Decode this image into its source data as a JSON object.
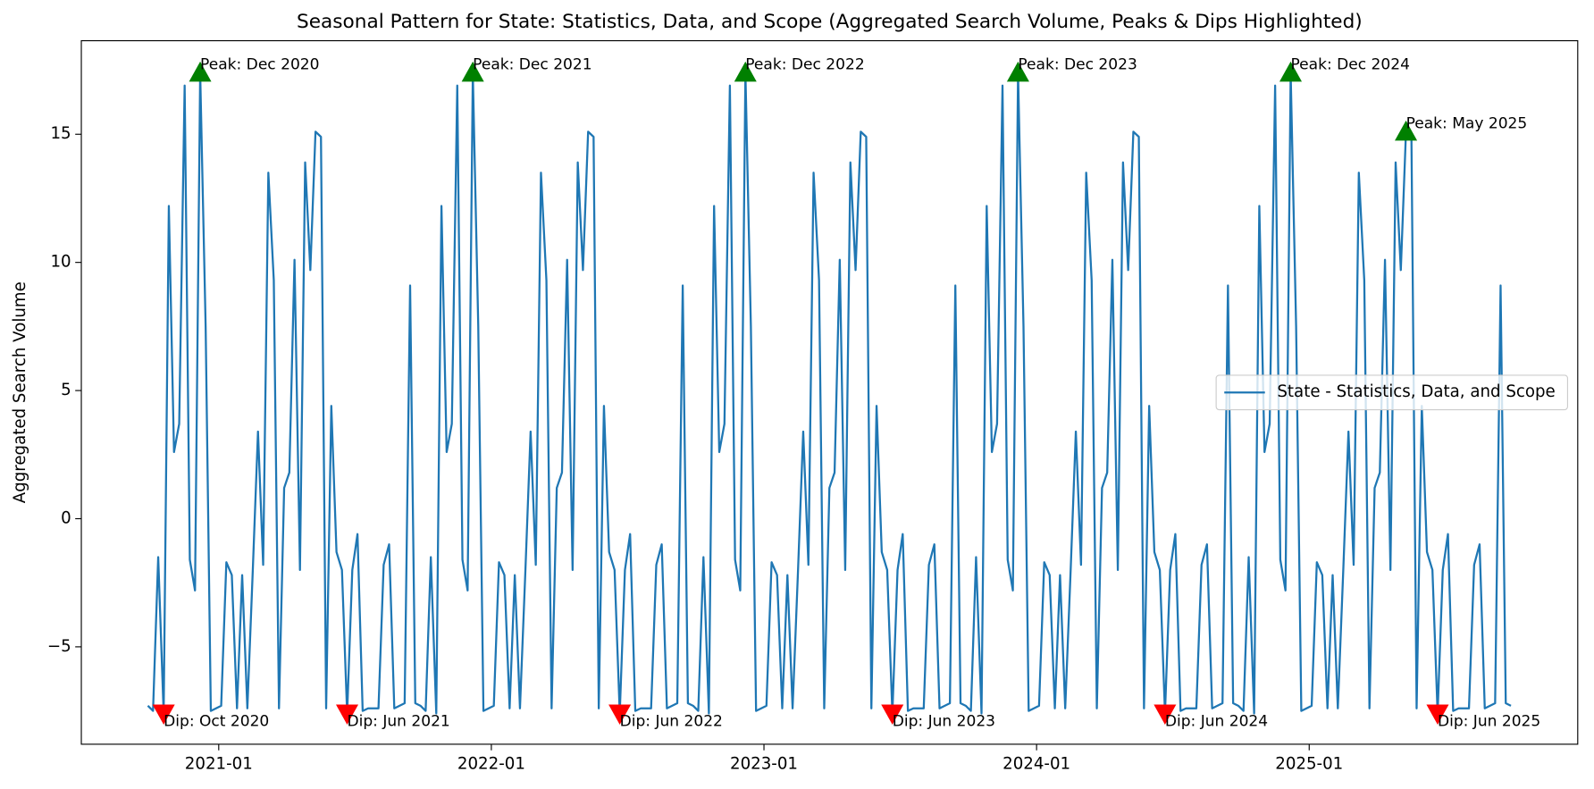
{
  "chart_data": {
    "type": "line",
    "title": "Seasonal Pattern for State: Statistics, Data, and Scope (Aggregated Search Volume, Peaks & Dips Highlighted)",
    "y_label": "Aggregated Search Volume",
    "xlim": [
      2020.496,
      2025.985
    ],
    "ylim": [
      -8.8,
      18.65
    ],
    "xticks": [
      {
        "value": 2021.0,
        "label": "2021-01"
      },
      {
        "value": 2022.0,
        "label": "2022-01"
      },
      {
        "value": 2023.0,
        "label": "2023-01"
      },
      {
        "value": 2024.0,
        "label": "2024-01"
      },
      {
        "value": 2025.0,
        "label": "2025-01"
      }
    ],
    "yticks": [
      {
        "value": -5,
        "label": "−5"
      },
      0,
      5,
      10,
      15
    ],
    "legend_loc": "center right",
    "x": [
      2020.74,
      2020.759,
      2020.778,
      2020.798,
      2020.817,
      2020.836,
      2020.855,
      2020.875,
      2020.894,
      2020.913,
      2020.932,
      2020.952,
      2020.971,
      2020.99,
      2021.009,
      2021.028,
      2021.048,
      2021.067,
      2021.086,
      2021.105,
      2021.125,
      2021.144,
      2021.163,
      2021.182,
      2021.202,
      2021.221,
      2021.24,
      2021.259,
      2021.278,
      2021.298,
      2021.317,
      2021.336,
      2021.355,
      2021.375,
      2021.394,
      2021.413,
      2021.432,
      2021.452,
      2021.471,
      2021.49,
      2021.509,
      2021.528,
      2021.548,
      2021.567,
      2021.586,
      2021.605,
      2021.625,
      2021.644,
      2021.663,
      2021.682,
      2021.702,
      2021.721,
      2021.74,
      2021.759,
      2021.778,
      2021.798,
      2021.817,
      2021.836,
      2021.855,
      2021.875,
      2021.894,
      2021.913,
      2021.932,
      2021.952,
      2021.971,
      2021.99,
      2022.009,
      2022.028,
      2022.048,
      2022.067,
      2022.086,
      2022.105,
      2022.125,
      2022.144,
      2022.163,
      2022.182,
      2022.202,
      2022.221,
      2022.24,
      2022.259,
      2022.278,
      2022.298,
      2022.317,
      2022.336,
      2022.355,
      2022.375,
      2022.394,
      2022.413,
      2022.432,
      2022.452,
      2022.471,
      2022.49,
      2022.509,
      2022.528,
      2022.548,
      2022.567,
      2022.586,
      2022.605,
      2022.625,
      2022.644,
      2022.663,
      2022.682,
      2022.702,
      2022.721,
      2022.74,
      2022.759,
      2022.778,
      2022.798,
      2022.817,
      2022.836,
      2022.855,
      2022.875,
      2022.894,
      2022.913,
      2022.932,
      2022.952,
      2022.971,
      2022.99,
      2023.009,
      2023.028,
      2023.048,
      2023.067,
      2023.086,
      2023.105,
      2023.125,
      2023.144,
      2023.163,
      2023.182,
      2023.202,
      2023.221,
      2023.24,
      2023.259,
      2023.278,
      2023.298,
      2023.317,
      2023.336,
      2023.355,
      2023.375,
      2023.394,
      2023.413,
      2023.432,
      2023.452,
      2023.471,
      2023.49,
      2023.509,
      2023.528,
      2023.548,
      2023.567,
      2023.586,
      2023.605,
      2023.625,
      2023.644,
      2023.663,
      2023.682,
      2023.702,
      2023.721,
      2023.74,
      2023.759,
      2023.778,
      2023.798,
      2023.817,
      2023.836,
      2023.855,
      2023.875,
      2023.894,
      2023.913,
      2023.932,
      2023.952,
      2023.971,
      2023.99,
      2024.009,
      2024.028,
      2024.048,
      2024.067,
      2024.086,
      2024.105,
      2024.125,
      2024.144,
      2024.163,
      2024.182,
      2024.202,
      2024.221,
      2024.24,
      2024.259,
      2024.278,
      2024.298,
      2024.317,
      2024.336,
      2024.355,
      2024.375,
      2024.394,
      2024.413,
      2024.432,
      2024.452,
      2024.471,
      2024.49,
      2024.509,
      2024.528,
      2024.548,
      2024.567,
      2024.586,
      2024.605,
      2024.625,
      2024.644,
      2024.663,
      2024.682,
      2024.702,
      2024.721,
      2024.74,
      2024.759,
      2024.778,
      2024.798,
      2024.817,
      2024.836,
      2024.855,
      2024.875,
      2024.894,
      2024.913,
      2024.932,
      2024.952,
      2024.971,
      2024.99,
      2025.009,
      2025.028,
      2025.048,
      2025.067,
      2025.086,
      2025.105,
      2025.125,
      2025.144,
      2025.163,
      2025.182,
      2025.202,
      2025.221,
      2025.24,
      2025.259,
      2025.278,
      2025.298,
      2025.317,
      2025.336,
      2025.355,
      2025.375,
      2025.394,
      2025.413,
      2025.432,
      2025.452,
      2025.471,
      2025.49,
      2025.509,
      2025.528,
      2025.548,
      2025.567,
      2025.586,
      2025.605,
      2025.625,
      2025.644,
      2025.663,
      2025.682,
      2025.702,
      2025.721,
      2025.74
    ],
    "series": [
      {
        "name": "State - Statistics, Data, and Scope",
        "color": "#1f77b4",
        "values": [
          -7.3,
          -7.5,
          -1.5,
          -7.6,
          12.2,
          2.6,
          3.7,
          16.9,
          -1.6,
          -2.8,
          17.4,
          7.5,
          -7.5,
          -7.4,
          -7.3,
          -1.7,
          -2.2,
          -7.4,
          -2.2,
          -7.4,
          -2.0,
          3.4,
          -1.8,
          13.5,
          9.3,
          -7.4,
          1.2,
          1.8,
          10.1,
          -2.0,
          13.9,
          9.7,
          15.1,
          14.9,
          -7.4,
          4.4,
          -1.3,
          -2.0,
          -7.6,
          -2.0,
          -0.6,
          -7.5,
          -7.4,
          -7.4,
          -7.4,
          -1.8,
          -1.0,
          -7.4,
          -7.3,
          -7.2,
          9.1,
          -7.2,
          -7.3,
          -7.5,
          -1.5,
          -7.6,
          12.2,
          2.6,
          3.7,
          16.9,
          -1.6,
          -2.8,
          17.4,
          7.5,
          -7.5,
          -7.4,
          -7.3,
          -1.7,
          -2.2,
          -7.4,
          -2.2,
          -7.4,
          -2.0,
          3.4,
          -1.8,
          13.5,
          9.3,
          -7.4,
          1.2,
          1.8,
          10.1,
          -2.0,
          13.9,
          9.7,
          15.1,
          14.9,
          -7.4,
          4.4,
          -1.3,
          -2.0,
          -7.6,
          -2.0,
          -0.6,
          -7.5,
          -7.4,
          -7.4,
          -7.4,
          -1.8,
          -1.0,
          -7.4,
          -7.3,
          -7.2,
          9.1,
          -7.2,
          -7.3,
          -7.5,
          -1.5,
          -7.6,
          12.2,
          2.6,
          3.7,
          16.9,
          -1.6,
          -2.8,
          17.4,
          7.5,
          -7.5,
          -7.4,
          -7.3,
          -1.7,
          -2.2,
          -7.4,
          -2.2,
          -7.4,
          -2.0,
          3.4,
          -1.8,
          13.5,
          9.3,
          -7.4,
          1.2,
          1.8,
          10.1,
          -2.0,
          13.9,
          9.7,
          15.1,
          14.9,
          -7.4,
          4.4,
          -1.3,
          -2.0,
          -7.6,
          -2.0,
          -0.6,
          -7.5,
          -7.4,
          -7.4,
          -7.4,
          -1.8,
          -1.0,
          -7.4,
          -7.3,
          -7.2,
          9.1,
          -7.2,
          -7.3,
          -7.5,
          -1.5,
          -7.6,
          12.2,
          2.6,
          3.7,
          16.9,
          -1.6,
          -2.8,
          17.4,
          7.5,
          -7.5,
          -7.4,
          -7.3,
          -1.7,
          -2.2,
          -7.4,
          -2.2,
          -7.4,
          -2.0,
          3.4,
          -1.8,
          13.5,
          9.3,
          -7.4,
          1.2,
          1.8,
          10.1,
          -2.0,
          13.9,
          9.7,
          15.1,
          14.9,
          -7.4,
          4.4,
          -1.3,
          -2.0,
          -7.6,
          -2.0,
          -0.6,
          -7.5,
          -7.4,
          -7.4,
          -7.4,
          -1.8,
          -1.0,
          -7.4,
          -7.3,
          -7.2,
          9.1,
          -7.2,
          -7.3,
          -7.5,
          -1.5,
          -7.6,
          12.2,
          2.6,
          3.7,
          16.9,
          -1.6,
          -2.8,
          17.4,
          7.5,
          -7.5,
          -7.4,
          -7.3,
          -1.7,
          -2.2,
          -7.4,
          -2.2,
          -7.4,
          -2.0,
          3.4,
          -1.8,
          13.5,
          9.3,
          -7.4,
          1.2,
          1.8,
          10.1,
          -2.0,
          13.9,
          9.7,
          15.1,
          14.9,
          -7.4,
          4.4,
          -1.3,
          -2.0,
          -7.6,
          -2.0,
          -0.6,
          -7.5,
          -7.4,
          -7.4,
          -7.4,
          -1.8,
          -1.0,
          -7.4,
          -7.3,
          -7.2,
          9.1,
          -7.2,
          -7.3
        ]
      }
    ],
    "peak_color": "green",
    "dip_color": "red",
    "peaks": [
      {
        "text": "Peak: Dec 2020",
        "x": 2020.932,
        "y": 17.4
      },
      {
        "text": "Peak: Dec 2021",
        "x": 2021.932,
        "y": 17.4
      },
      {
        "text": "Peak: Dec 2022",
        "x": 2022.932,
        "y": 17.4
      },
      {
        "text": "Peak: Dec 2023",
        "x": 2023.932,
        "y": 17.4
      },
      {
        "text": "Peak: Dec 2024",
        "x": 2024.932,
        "y": 17.4
      },
      {
        "text": "Peak: May 2025",
        "x": 2025.355,
        "y": 15.1
      }
    ],
    "dips": [
      {
        "text": "Dip: Oct 2020",
        "x": 2020.798,
        "y": -7.6
      },
      {
        "text": "Dip: Jun 2021",
        "x": 2021.471,
        "y": -7.6
      },
      {
        "text": "Dip: Jun 2022",
        "x": 2022.471,
        "y": -7.6
      },
      {
        "text": "Dip: Jun 2023",
        "x": 2023.471,
        "y": -7.6
      },
      {
        "text": "Dip: Jun 2024",
        "x": 2024.471,
        "y": -7.6
      },
      {
        "text": "Dip: Jun 2025",
        "x": 2025.471,
        "y": -7.6
      }
    ]
  }
}
